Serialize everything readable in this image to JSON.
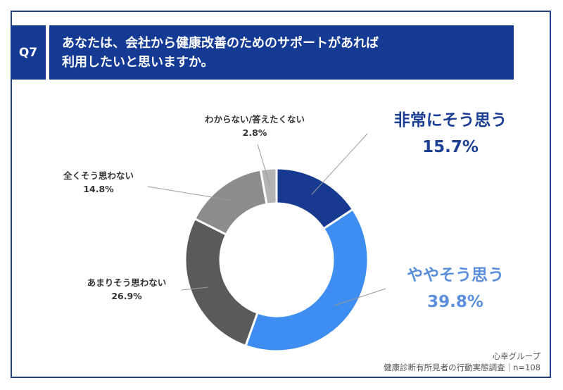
{
  "header": {
    "q_label": "Q7",
    "title_line1": "あなたは、会社から健康改善のためのサポートがあれば",
    "title_line2": "利用したいと思いますか。"
  },
  "chart_data": {
    "type": "pie",
    "style": "donut",
    "categories": [
      "非常にそう思う",
      "ややそう思う",
      "あまりそう思わない",
      "全くそう思わない",
      "わからない/答えたくない"
    ],
    "values": [
      15.7,
      39.8,
      26.9,
      14.8,
      2.8
    ],
    "value_labels": [
      "15.7%",
      "39.8%",
      "26.9%",
      "14.8%",
      "2.8%"
    ],
    "colors": [
      "#17398f",
      "#3d8ef0",
      "#5a5a5a",
      "#8c8c8c",
      "#b4b4b4"
    ]
  },
  "footer": {
    "line1": "心幸グループ",
    "line2": "健康診断有所見者の行動実態調査｜n=108"
  }
}
